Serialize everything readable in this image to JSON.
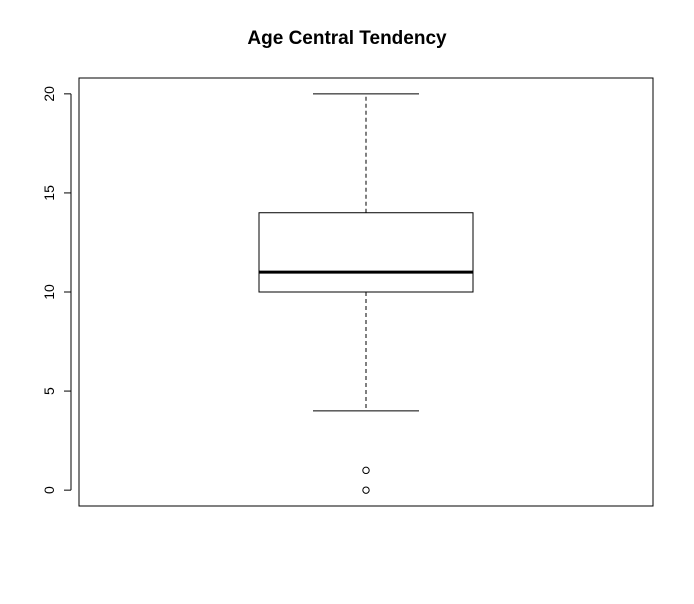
{
  "chart_data": {
    "type": "boxplot",
    "title": "Age Central Tendency",
    "xlabel": "",
    "ylabel": "",
    "ylim": [
      -0.8,
      20.8
    ],
    "yticks": [
      0,
      5,
      10,
      15,
      20
    ],
    "grid": false,
    "box": {
      "lower_whisker": 4,
      "q1": 10,
      "median": 11,
      "q3": 14,
      "upper_whisker": 20,
      "outliers": [
        0,
        1
      ]
    },
    "colors": {
      "stroke": "#000000",
      "fill": "#ffffff"
    }
  }
}
